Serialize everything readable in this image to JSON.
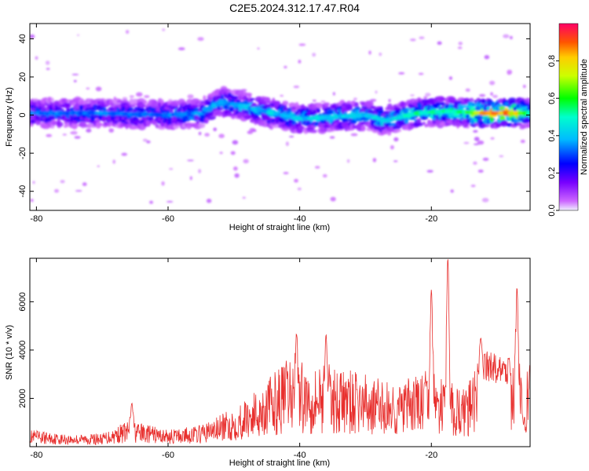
{
  "title": "C2E5.2024.312.17.47.R04",
  "chart_data": [
    {
      "type": "heatmap",
      "xlabel": "Height of straight line (km)",
      "ylabel": "Frequency (Hz)",
      "xlim": [
        -81,
        -5
      ],
      "ylim": [
        -50,
        48
      ],
      "x_ticks": [
        -80,
        -60,
        -40,
        -20
      ],
      "y_ticks": [
        40,
        20,
        0,
        -20,
        -40
      ],
      "colorbar": {
        "label": "Normalized spectral amplitude",
        "range": [
          0,
          1
        ],
        "ticks": [
          0.0,
          0.2,
          0.4,
          0.6,
          0.8
        ],
        "tick_labels": [
          "0.0",
          "0.2",
          "0.4",
          "0.6",
          "0.8"
        ]
      },
      "band_center_hz": [
        {
          "x": -81,
          "y": 1
        },
        {
          "x": -70,
          "y": 1
        },
        {
          "x": -60,
          "y": 0
        },
        {
          "x": -55,
          "y": 1
        },
        {
          "x": -52,
          "y": 7
        },
        {
          "x": -48,
          "y": 4
        },
        {
          "x": -44,
          "y": 1
        },
        {
          "x": -40,
          "y": -2
        },
        {
          "x": -35,
          "y": -1
        },
        {
          "x": -30,
          "y": 0
        },
        {
          "x": -27,
          "y": -3
        },
        {
          "x": -22,
          "y": 1
        },
        {
          "x": -18,
          "y": 2
        },
        {
          "x": -12,
          "y": 1
        },
        {
          "x": -5,
          "y": 1
        }
      ],
      "band_peak_amplitude": [
        {
          "x": -81,
          "y": 0.35
        },
        {
          "x": -60,
          "y": 0.35
        },
        {
          "x": -50,
          "y": 0.4
        },
        {
          "x": -40,
          "y": 0.45
        },
        {
          "x": -30,
          "y": 0.45
        },
        {
          "x": -20,
          "y": 0.55
        },
        {
          "x": -15,
          "y": 0.6
        },
        {
          "x": -11,
          "y": 0.97
        },
        {
          "x": -8,
          "y": 0.9
        },
        {
          "x": -5,
          "y": 0.55
        }
      ]
    },
    {
      "type": "line",
      "xlabel": "Height of straight line (km)",
      "ylabel": "SNR (10 * v/v)",
      "xlim": [
        -81,
        -5
      ],
      "ylim": [
        0,
        7800
      ],
      "x_ticks": [
        -80,
        -60,
        -40,
        -20
      ],
      "y_ticks": [
        2000,
        4000,
        6000
      ],
      "color": "#e8302e",
      "envelope": [
        {
          "x": -81,
          "y": 700
        },
        {
          "x": -75,
          "y": 500
        },
        {
          "x": -70,
          "y": 550
        },
        {
          "x": -66,
          "y": 1100
        },
        {
          "x": -60,
          "y": 700
        },
        {
          "x": -55,
          "y": 900
        },
        {
          "x": -50,
          "y": 1600
        },
        {
          "x": -46,
          "y": 2500
        },
        {
          "x": -42,
          "y": 3600
        },
        {
          "x": -36,
          "y": 3400
        },
        {
          "x": -30,
          "y": 3000
        },
        {
          "x": -25,
          "y": 2600
        },
        {
          "x": -21,
          "y": 3200
        },
        {
          "x": -15,
          "y": 2400
        },
        {
          "x": -12,
          "y": 3800
        },
        {
          "x": -8,
          "y": 3500
        },
        {
          "x": -6,
          "y": 3200
        },
        {
          "x": -5,
          "y": 3200
        }
      ],
      "peaks": [
        {
          "x": -65.5,
          "y": 1800
        },
        {
          "x": -40.5,
          "y": 4700
        },
        {
          "x": -36,
          "y": 4650
        },
        {
          "x": -20,
          "y": 6500
        },
        {
          "x": -17.5,
          "y": 7800
        },
        {
          "x": -12.5,
          "y": 4500
        },
        {
          "x": -7,
          "y": 6600
        },
        {
          "x": -6,
          "y": 900
        },
        {
          "x": -5,
          "y": 3400
        }
      ]
    }
  ]
}
